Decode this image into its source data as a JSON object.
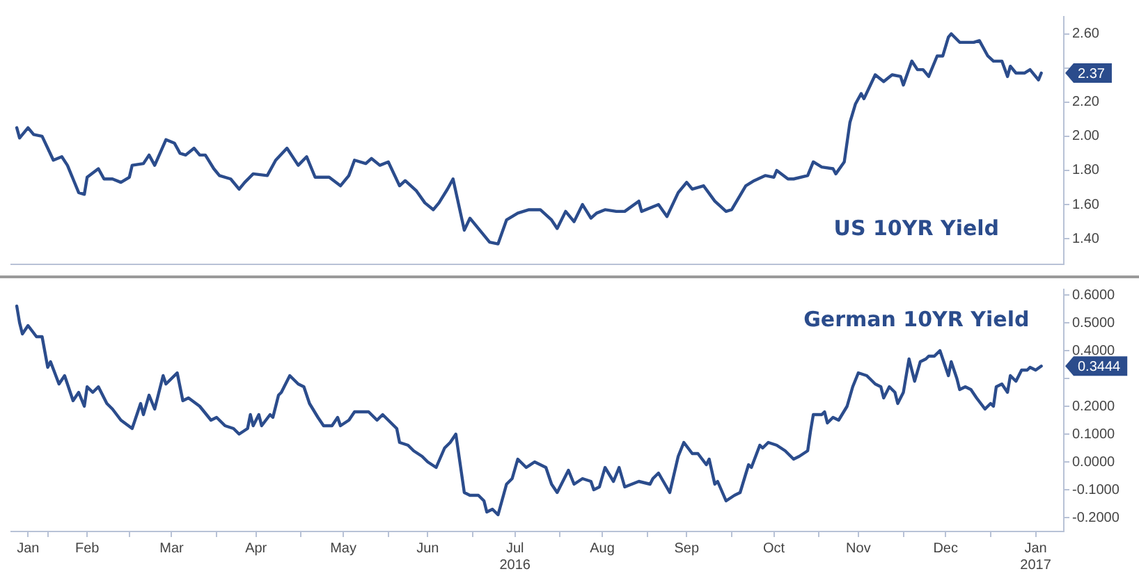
{
  "chart_data": [
    {
      "type": "line",
      "tick_labels": "y",
      "xlim": [
        "2016-01-19",
        "2017-01-27"
      ],
      "ylim": [
        1.25,
        2.7
      ],
      "yticks": [
        {
          "value": 1.4,
          "label": "1.40"
        },
        {
          "value": 1.6,
          "label": "1.60"
        },
        {
          "value": 1.8,
          "label": "1.80"
        },
        {
          "value": 2.0,
          "label": "2.00"
        },
        {
          "value": 2.2,
          "label": "2.20"
        },
        {
          "value": 2.4,
          "label": null
        },
        {
          "value": 2.6,
          "label": "2.60"
        }
      ],
      "annotations": [
        {
          "text": "2.37",
          "x": "2017-01-19",
          "y": 2.37
        }
      ],
      "series": [
        {
          "name": "US 10YR Yield",
          "color": "#2b4c8c",
          "x": [
            "2016-01-21",
            "2016-01-22",
            "2016-01-25",
            "2016-01-27",
            "2016-01-30",
            "2016-02-01",
            "2016-02-03",
            "2016-02-06",
            "2016-02-08",
            "2016-02-10",
            "2016-02-12",
            "2016-02-14",
            "2016-02-15",
            "2016-02-19",
            "2016-02-21",
            "2016-02-24",
            "2016-02-27",
            "2016-03-01",
            "2016-03-02",
            "2016-03-06",
            "2016-03-08",
            "2016-03-10",
            "2016-03-14",
            "2016-03-17",
            "2016-03-19",
            "2016-03-21",
            "2016-03-24",
            "2016-03-26",
            "2016-03-28",
            "2016-03-31",
            "2016-04-02",
            "2016-04-06",
            "2016-04-09",
            "2016-04-11",
            "2016-04-14",
            "2016-04-19",
            "2016-04-22",
            "2016-04-26",
            "2016-04-30",
            "2016-05-03",
            "2016-05-06",
            "2016-05-11",
            "2016-05-15",
            "2016-05-18",
            "2016-05-20",
            "2016-05-24",
            "2016-05-26",
            "2016-05-29",
            "2016-06-01",
            "2016-06-05",
            "2016-06-07",
            "2016-06-11",
            "2016-06-14",
            "2016-06-17",
            "2016-06-19",
            "2016-06-22",
            "2016-06-24",
            "2016-06-28",
            "2016-06-30",
            "2016-07-07",
            "2016-07-10",
            "2016-07-13",
            "2016-07-17",
            "2016-07-21",
            "2016-07-25",
            "2016-07-29",
            "2016-07-31",
            "2016-08-03",
            "2016-08-06",
            "2016-08-09",
            "2016-08-12",
            "2016-08-14",
            "2016-08-17",
            "2016-08-21",
            "2016-08-24",
            "2016-08-29",
            "2016-08-30",
            "2016-09-05",
            "2016-09-08",
            "2016-09-12",
            "2016-09-15",
            "2016-09-17",
            "2016-09-21",
            "2016-09-25",
            "2016-09-29",
            "2016-10-01",
            "2016-10-06",
            "2016-10-09",
            "2016-10-13",
            "2016-10-16",
            "2016-10-17",
            "2016-10-21",
            "2016-10-23",
            "2016-10-28",
            "2016-10-30",
            "2016-11-02",
            "2016-11-06",
            "2016-11-07",
            "2016-11-10",
            "2016-11-12",
            "2016-11-14",
            "2016-11-16",
            "2016-11-17",
            "2016-11-21",
            "2016-11-24",
            "2016-11-27",
            "2016-11-30",
            "2016-12-01",
            "2016-12-04",
            "2016-12-06",
            "2016-12-08",
            "2016-12-10",
            "2016-12-13",
            "2016-12-15",
            "2016-12-17",
            "2016-12-18",
            "2016-12-21",
            "2016-12-23",
            "2016-12-26",
            "2016-12-28",
            "2016-12-31",
            "2017-01-02",
            "2017-01-05",
            "2017-01-07",
            "2017-01-08",
            "2017-01-10",
            "2017-01-13",
            "2017-01-15",
            "2017-01-18",
            "2017-01-19"
          ],
          "values": [
            2.05,
            1.99,
            2.05,
            2.01,
            2.0,
            1.93,
            1.86,
            1.88,
            1.83,
            1.75,
            1.67,
            1.66,
            1.76,
            1.81,
            1.75,
            1.75,
            1.73,
            1.76,
            1.83,
            1.84,
            1.89,
            1.83,
            1.98,
            1.96,
            1.9,
            1.89,
            1.93,
            1.89,
            1.89,
            1.81,
            1.77,
            1.75,
            1.69,
            1.73,
            1.78,
            1.77,
            1.86,
            1.93,
            1.83,
            1.88,
            1.76,
            1.76,
            1.71,
            1.77,
            1.86,
            1.84,
            1.87,
            1.83,
            1.85,
            1.71,
            1.74,
            1.68,
            1.61,
            1.57,
            1.61,
            1.69,
            1.75,
            1.45,
            1.52,
            1.38,
            1.37,
            1.51,
            1.55,
            1.57,
            1.57,
            1.51,
            1.46,
            1.56,
            1.5,
            1.6,
            1.52,
            1.55,
            1.57,
            1.56,
            1.56,
            1.62,
            1.56,
            1.6,
            1.53,
            1.67,
            1.73,
            1.69,
            1.71,
            1.62,
            1.56,
            1.57,
            1.71,
            1.74,
            1.77,
            1.76,
            1.8,
            1.75,
            1.75,
            1.77,
            1.85,
            1.82,
            1.81,
            1.78,
            1.85,
            2.08,
            2.19,
            2.25,
            2.22,
            2.36,
            2.32,
            2.36,
            2.35,
            2.3,
            2.44,
            2.39,
            2.39,
            2.35,
            2.47,
            2.47,
            2.58,
            2.6,
            2.55,
            2.55,
            2.55,
            2.56,
            2.47,
            2.44,
            2.44,
            2.35,
            2.41,
            2.37,
            2.37,
            2.39,
            2.33,
            2.37
          ]
        }
      ]
    },
    {
      "type": "line",
      "xlim": [
        "2016-01-19",
        "2017-01-27"
      ],
      "ylim": [
        -0.25,
        0.62
      ],
      "xticks": [
        {
          "value": "2016-01-25",
          "label": "Jan"
        },
        {
          "value": "2016-02-01",
          "label": null
        },
        {
          "value": "2016-02-15",
          "label": "Feb"
        },
        {
          "value": "2016-03-01",
          "label": null
        },
        {
          "value": "2016-03-16",
          "label": "Mar"
        },
        {
          "value": "2016-04-01",
          "label": null
        },
        {
          "value": "2016-04-15",
          "label": "Apr"
        },
        {
          "value": "2016-05-01",
          "label": null
        },
        {
          "value": "2016-05-16",
          "label": "May"
        },
        {
          "value": "2016-06-01",
          "label": null
        },
        {
          "value": "2016-06-15",
          "label": "Jun"
        },
        {
          "value": "2016-07-01",
          "label": null
        },
        {
          "value": "2016-07-16",
          "label": "Jul\n2016"
        },
        {
          "value": "2016-08-01",
          "label": null
        },
        {
          "value": "2016-08-16",
          "label": "Aug"
        },
        {
          "value": "2016-09-01",
          "label": null
        },
        {
          "value": "2016-09-15",
          "label": "Sep"
        },
        {
          "value": "2016-10-01",
          "label": null
        },
        {
          "value": "2016-10-16",
          "label": "Oct"
        },
        {
          "value": "2016-11-01",
          "label": null
        },
        {
          "value": "2016-11-15",
          "label": "Nov"
        },
        {
          "value": "2016-12-01",
          "label": null
        },
        {
          "value": "2016-12-16",
          "label": "Dec"
        },
        {
          "value": "2017-01-01",
          "label": null
        },
        {
          "value": "2017-01-17",
          "label": "Jan\n2017"
        }
      ],
      "yticks": [
        {
          "value": -0.2,
          "label": "-0.2000"
        },
        {
          "value": -0.1,
          "label": "-0.1000"
        },
        {
          "value": 0,
          "label": "0.0000"
        },
        {
          "value": 0.1,
          "label": "0.1000"
        },
        {
          "value": 0.2,
          "label": "0.2000"
        },
        {
          "value": 0.3,
          "label": null
        },
        {
          "value": 0.4,
          "label": "0.4000"
        },
        {
          "value": 0.5,
          "label": "0.5000"
        },
        {
          "value": 0.6,
          "label": "0.6000"
        }
      ],
      "annotations": [
        {
          "text": "0.3444",
          "x": "2017-01-19",
          "y": 0.3444
        }
      ],
      "series": [
        {
          "name": "German 10YR Yield",
          "color": "#2b4c8c",
          "x": [
            "2016-01-21",
            "2016-01-22",
            "2016-01-23",
            "2016-01-25",
            "2016-01-28",
            "2016-01-30",
            "2016-02-01",
            "2016-02-02",
            "2016-02-05",
            "2016-02-07",
            "2016-02-10",
            "2016-02-12",
            "2016-02-14",
            "2016-02-15",
            "2016-02-17",
            "2016-02-19",
            "2016-02-22",
            "2016-02-24",
            "2016-02-27",
            "2016-03-02",
            "2016-03-05",
            "2016-03-06",
            "2016-03-08",
            "2016-03-10",
            "2016-03-13",
            "2016-03-14",
            "2016-03-18",
            "2016-03-20",
            "2016-03-22",
            "2016-03-26",
            "2016-03-30",
            "2016-04-01",
            "2016-04-04",
            "2016-04-07",
            "2016-04-09",
            "2016-04-12",
            "2016-04-13",
            "2016-04-14",
            "2016-04-16",
            "2016-04-17",
            "2016-04-20",
            "2016-04-21",
            "2016-04-23",
            "2016-04-24",
            "2016-04-27",
            "2016-04-30",
            "2016-05-02",
            "2016-05-04",
            "2016-05-07",
            "2016-05-09",
            "2016-05-12",
            "2016-05-14",
            "2016-05-15",
            "2016-05-18",
            "2016-05-20",
            "2016-05-24",
            "2016-05-25",
            "2016-05-28",
            "2016-05-30",
            "2016-06-01",
            "2016-06-04",
            "2016-06-05",
            "2016-06-08",
            "2016-06-10",
            "2016-06-13",
            "2016-06-15",
            "2016-06-18",
            "2016-06-21",
            "2016-06-23",
            "2016-06-25",
            "2016-06-28",
            "2016-06-30",
            "2016-07-03",
            "2016-07-05",
            "2016-07-06",
            "2016-07-08",
            "2016-07-10",
            "2016-07-13",
            "2016-07-15",
            "2016-07-17",
            "2016-07-20",
            "2016-07-23",
            "2016-07-27",
            "2016-07-29",
            "2016-07-31",
            "2016-08-04",
            "2016-08-06",
            "2016-08-09",
            "2016-08-12",
            "2016-08-13",
            "2016-08-15",
            "2016-08-17",
            "2016-08-20",
            "2016-08-22",
            "2016-08-24",
            "2016-08-29",
            "2016-09-02",
            "2016-09-03",
            "2016-09-05",
            "2016-09-09",
            "2016-09-12",
            "2016-09-14",
            "2016-09-17",
            "2016-09-19",
            "2016-09-22",
            "2016-09-23",
            "2016-09-25",
            "2016-09-26",
            "2016-09-29",
            "2016-10-02",
            "2016-10-04",
            "2016-10-07",
            "2016-10-08",
            "2016-10-11",
            "2016-10-12",
            "2016-10-14",
            "2016-10-17",
            "2016-10-20",
            "2016-10-23",
            "2016-10-25",
            "2016-10-28",
            "2016-10-29",
            "2016-10-30",
            "2016-11-02",
            "2016-11-03",
            "2016-11-04",
            "2016-11-06",
            "2016-11-08",
            "2016-11-11",
            "2016-11-13",
            "2016-11-15",
            "2016-11-18",
            "2016-11-21",
            "2016-11-23",
            "2016-11-24",
            "2016-11-26",
            "2016-11-28",
            "2016-11-29",
            "2016-12-01",
            "2016-12-03",
            "2016-12-05",
            "2016-12-07",
            "2016-12-09",
            "2016-12-10",
            "2016-12-12",
            "2016-12-14",
            "2016-12-15",
            "2016-12-17",
            "2016-12-18",
            "2016-12-20",
            "2016-12-21",
            "2016-12-23",
            "2016-12-25",
            "2016-12-27",
            "2016-12-30",
            "2017-01-01",
            "2017-01-02",
            "2017-01-03",
            "2017-01-05",
            "2017-01-07",
            "2017-01-08",
            "2017-01-10",
            "2017-01-12",
            "2017-01-14",
            "2017-01-15",
            "2017-01-17",
            "2017-01-19"
          ],
          "values": [
            0.56,
            0.5,
            0.46,
            0.49,
            0.45,
            0.45,
            0.34,
            0.36,
            0.28,
            0.31,
            0.22,
            0.25,
            0.2,
            0.27,
            0.25,
            0.27,
            0.21,
            0.19,
            0.15,
            0.12,
            0.21,
            0.17,
            0.24,
            0.19,
            0.31,
            0.28,
            0.32,
            0.22,
            0.23,
            0.2,
            0.15,
            0.16,
            0.13,
            0.12,
            0.1,
            0.12,
            0.17,
            0.13,
            0.17,
            0.13,
            0.17,
            0.16,
            0.24,
            0.25,
            0.31,
            0.28,
            0.27,
            0.21,
            0.16,
            0.13,
            0.13,
            0.16,
            0.13,
            0.15,
            0.18,
            0.18,
            0.18,
            0.15,
            0.17,
            0.15,
            0.12,
            0.07,
            0.06,
            0.04,
            0.02,
            0.0,
            -0.02,
            0.05,
            0.07,
            0.1,
            -0.11,
            -0.12,
            -0.12,
            -0.14,
            -0.18,
            -0.17,
            -0.19,
            -0.08,
            -0.06,
            0.01,
            -0.02,
            0.0,
            -0.02,
            -0.08,
            -0.11,
            -0.03,
            -0.08,
            -0.06,
            -0.07,
            -0.1,
            -0.09,
            -0.02,
            -0.07,
            -0.02,
            -0.09,
            -0.07,
            -0.08,
            -0.06,
            -0.04,
            -0.11,
            0.02,
            0.07,
            0.03,
            0.03,
            -0.01,
            0.01,
            -0.08,
            -0.07,
            -0.14,
            -0.12,
            -0.11,
            -0.01,
            -0.02,
            0.06,
            0.05,
            0.07,
            0.06,
            0.04,
            0.01,
            0.02,
            0.04,
            0.11,
            0.17,
            0.17,
            0.18,
            0.14,
            0.16,
            0.15,
            0.2,
            0.27,
            0.32,
            0.31,
            0.28,
            0.27,
            0.23,
            0.27,
            0.25,
            0.21,
            0.25,
            0.37,
            0.29,
            0.36,
            0.37,
            0.38,
            0.38,
            0.4,
            0.37,
            0.31,
            0.36,
            0.3,
            0.26,
            0.27,
            0.26,
            0.23,
            0.19,
            0.21,
            0.2,
            0.27,
            0.28,
            0.25,
            0.31,
            0.29,
            0.33,
            0.33,
            0.34,
            0.33,
            0.3444
          ]
        }
      ]
    }
  ]
}
